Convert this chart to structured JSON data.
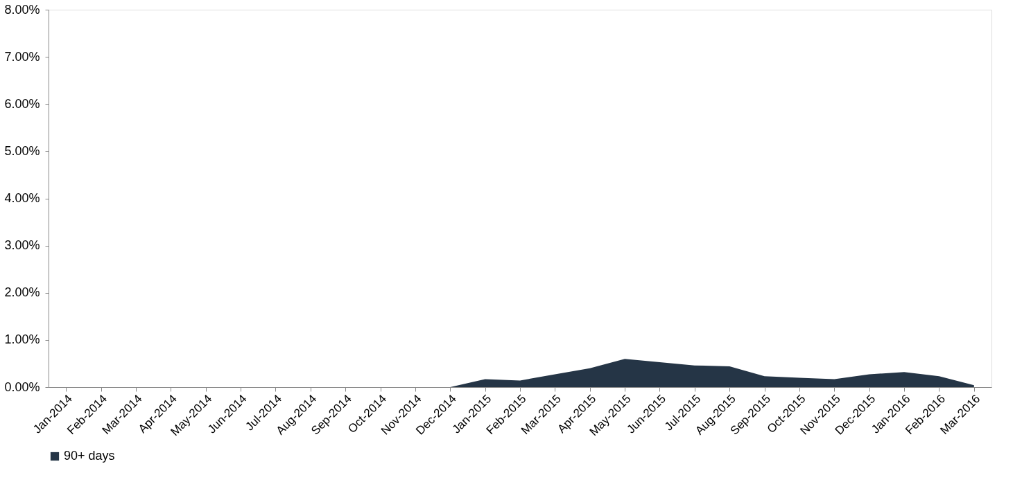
{
  "chart_data": {
    "type": "area",
    "categories": [
      "Jan-2014",
      "Feb-2014",
      "Mar-2014",
      "Apr-2014",
      "May-2014",
      "Jun-2014",
      "Jul-2014",
      "Aug-2014",
      "Sep-2014",
      "Oct-2014",
      "Nov-2014",
      "Dec-2014",
      "Jan-2015",
      "Feb-2015",
      "Mar-2015",
      "Apr-2015",
      "May-2015",
      "Jun-2015",
      "Jul-2015",
      "Aug-2015",
      "Sep-2015",
      "Oct-2015",
      "Nov-2015",
      "Dec-2015",
      "Jan-2016",
      "Feb-2016",
      "Mar-2016"
    ],
    "series": [
      {
        "name": "90+ days",
        "color": "#253546",
        "values": [
          0,
          0,
          0,
          0,
          0,
          0,
          0,
          0,
          0,
          0,
          0,
          0,
          0.17,
          0.14,
          0.27,
          0.4,
          0.6,
          0.53,
          0.46,
          0.44,
          0.23,
          0.2,
          0.17,
          0.27,
          0.32,
          0.23,
          0.04
        ]
      }
    ],
    "ylim": [
      0,
      8
    ],
    "yticks": [
      {
        "value": 0,
        "label": "0.00%"
      },
      {
        "value": 1,
        "label": "1.00%"
      },
      {
        "value": 2,
        "label": "2.00%"
      },
      {
        "value": 3,
        "label": "3.00%"
      },
      {
        "value": 4,
        "label": "4.00%"
      },
      {
        "value": 5,
        "label": "5.00%"
      },
      {
        "value": 6,
        "label": "6.00%"
      },
      {
        "value": 7,
        "label": "7.00%"
      },
      {
        "value": 8,
        "label": "8.00%"
      }
    ],
    "grid": false,
    "legend": "bottom"
  }
}
